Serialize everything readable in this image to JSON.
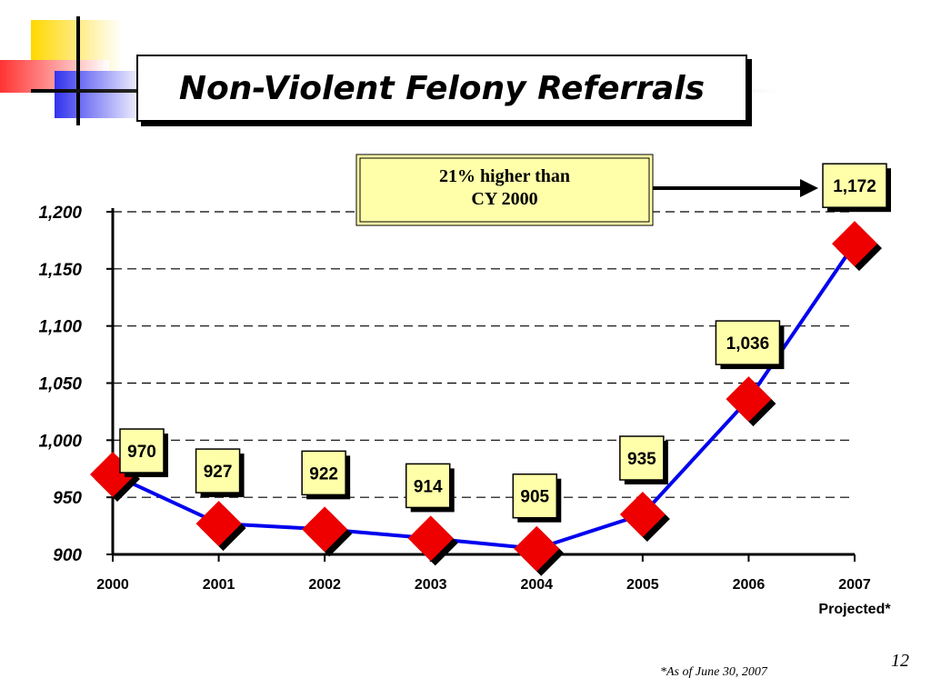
{
  "slide": {
    "title": "Non-Violent Felony Referrals",
    "page_number": "12",
    "footnote": "*As of June 30, 2007"
  },
  "chart_data": {
    "type": "line",
    "title": "",
    "xlabel": "",
    "ylabel": "",
    "categories": [
      "2000",
      "2001",
      "2002",
      "2003",
      "2004",
      "2005",
      "2006",
      "2007"
    ],
    "category_sublabels": {
      "2007": "Projected*"
    },
    "series": [
      {
        "values": [
          970,
          927,
          922,
          914,
          905,
          935,
          1036,
          1172
        ],
        "line_color": "#0000ee",
        "marker_color": "#ee0000",
        "marker": "diamond"
      }
    ],
    "data_labels": [
      "970",
      "927",
      "922",
      "914",
      "905",
      "935",
      "1,036",
      "1,172"
    ],
    "ylim": [
      900,
      1200
    ],
    "yticks": [
      900,
      950,
      1000,
      1050,
      1100,
      1150,
      1200
    ],
    "ytick_labels": [
      "900",
      "950",
      "1,000",
      "1,050",
      "1,100",
      "1,150",
      "1,200"
    ],
    "grid": "horizontal dashed",
    "annotation": {
      "lines": [
        "21% higher than",
        "CY 2000"
      ],
      "points_to": "2007"
    },
    "colors": {
      "label_fill": "#ffffaa",
      "callout_fill": "#ffffaa"
    }
  }
}
